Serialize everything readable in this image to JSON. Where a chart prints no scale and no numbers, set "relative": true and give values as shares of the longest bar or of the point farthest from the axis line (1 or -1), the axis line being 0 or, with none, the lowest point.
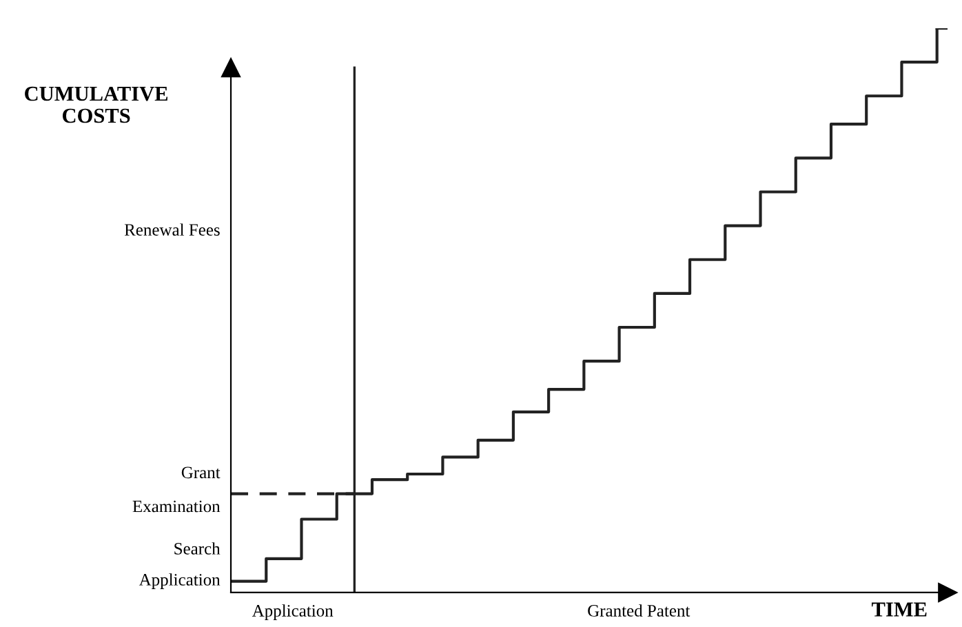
{
  "chart_data": {
    "type": "step",
    "relative": true,
    "xlabel": "TIME",
    "ylabel": "CUMULATIVE COSTS",
    "categories": [
      null,
      null,
      null,
      null,
      null,
      null,
      null,
      null,
      null,
      null,
      null,
      null,
      null,
      null,
      null,
      null,
      null,
      null,
      null,
      null,
      null
    ],
    "series": [
      {
        "color": "#222222",
        "values": [
          0.02,
          0.06,
          0.13,
          0.175,
          0.2,
          0.21,
          0.24,
          0.27,
          0.32,
          0.36,
          0.41,
          0.47,
          0.53,
          0.59,
          0.65,
          0.71,
          0.77,
          0.83,
          0.88,
          0.94,
          1.0
        ]
      }
    ],
    "ref_lines": [
      {
        "axis": "y",
        "value": 0.175,
        "color": "#222222",
        "line_style": "dashed"
      }
    ],
    "annotations": [
      "Application",
      "Search",
      "Examination",
      "Grant",
      "Renewal Fees",
      "Application",
      "Granted Patent"
    ],
    "legend": false
  }
}
